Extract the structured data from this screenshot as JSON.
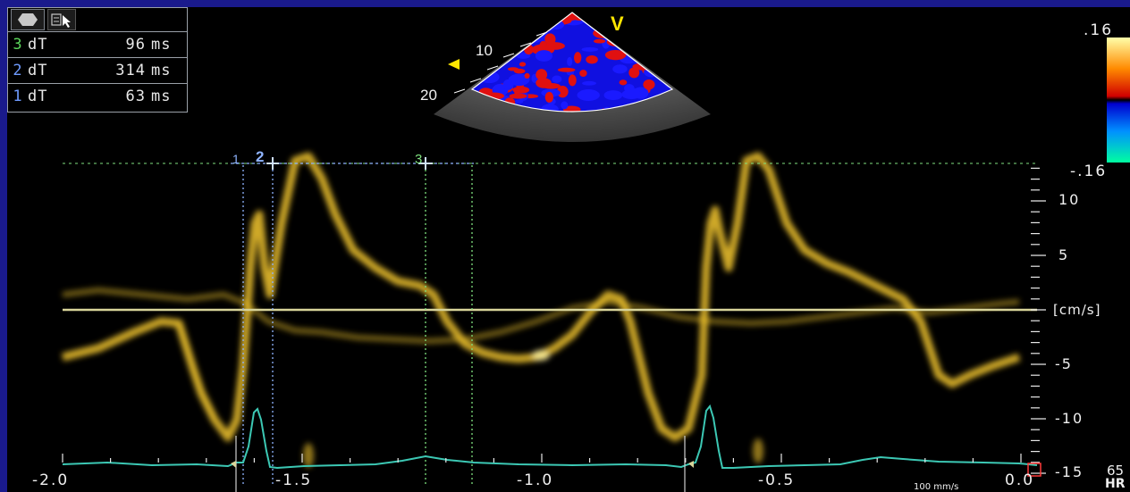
{
  "measurements": [
    {
      "index": "3",
      "label": "dT",
      "value": "96",
      "unit": "ms",
      "color": "#5bd65b"
    },
    {
      "index": "2",
      "label": "dT",
      "value": "314",
      "unit": "ms",
      "color": "#6f9bff"
    },
    {
      "index": "1",
      "label": "dT",
      "value": "63",
      "unit": "ms",
      "color": "#6f9bff"
    }
  ],
  "toolbar": {
    "items": [
      {
        "icon": "hexagon-icon"
      },
      {
        "icon": "measure-cursor-icon"
      }
    ]
  },
  "sector": {
    "mode_label": "V",
    "depth_labels": [
      "10",
      "20"
    ]
  },
  "velocity_scale": {
    "max": ".16",
    "min": "-.16"
  },
  "doppler": {
    "unit": "[cm/s]",
    "y_ticks": [
      "10",
      "5",
      "-5",
      "-10",
      "-15"
    ],
    "x_ticks": [
      "-2.0",
      "-1.5",
      "-1.0",
      "-0.5",
      "0.0"
    ],
    "sweep_speed": "100 mm/s",
    "hr_value": "65",
    "hr_label": "HR"
  },
  "cursors": [
    "1",
    "2",
    "3"
  ],
  "colors": {
    "background_frame": "#1a1a8c",
    "trace": "#e8c23a",
    "ecg": "#3cc8b4",
    "cursor_blue": "#8fb4ff",
    "cursor_green": "#7fe07f"
  }
}
